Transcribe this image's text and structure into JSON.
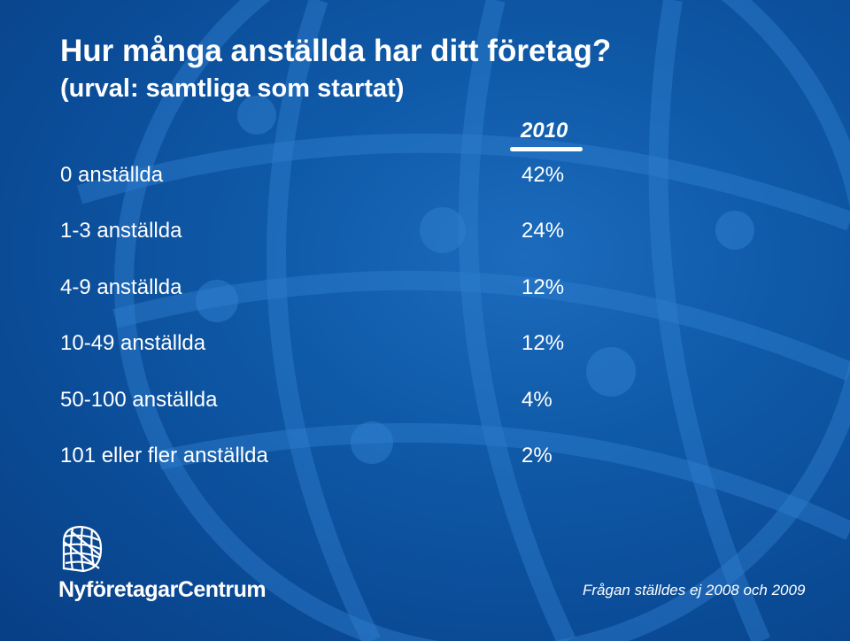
{
  "slide": {
    "title": "Hur många anställda har ditt företag?",
    "subtitle": "(urval: samtliga som startat)",
    "column_header": "2010",
    "rows": [
      {
        "label": "0 anställda",
        "value": "42%"
      },
      {
        "label": "1-3 anställda",
        "value": "24%"
      },
      {
        "label": "4-9 anställda",
        "value": "12%"
      },
      {
        "label": "10-49 anställda",
        "value": "12%"
      },
      {
        "label": "50-100 anställda",
        "value": "4%"
      },
      {
        "label": "101 eller fler anställda",
        "value": "2%"
      }
    ],
    "logo_text": "NyföretagarCentrum",
    "footnote": "Frågan ställdes ej 2008 och 2009"
  },
  "colors": {
    "background": "#0b4d99",
    "text": "#ffffff"
  },
  "icons": {
    "logo": "globe-grid-icon",
    "background": "globe-background-icon"
  }
}
